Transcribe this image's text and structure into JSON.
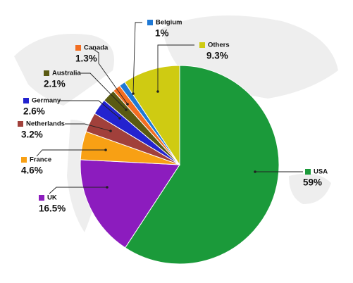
{
  "chart_data": {
    "type": "pie",
    "categories": [
      "USA",
      "UK",
      "France",
      "Netherlands",
      "Germany",
      "Australia",
      "Canada",
      "Belgium",
      "Others"
    ],
    "values": [
      59,
      16.5,
      4.6,
      3.2,
      2.6,
      2.1,
      1.3,
      1,
      9.3
    ],
    "value_labels": [
      "59%",
      "16.5%",
      "4.6%",
      "3.2%",
      "2.6%",
      "2.1%",
      "1.3%",
      "1%",
      "9.3%"
    ],
    "colors": [
      "#1b9a3a",
      "#8c1cbe",
      "#f8a014",
      "#a1403b",
      "#2323cf",
      "#5a5a12",
      "#f26e22",
      "#1f79d5",
      "#cfcb12"
    ]
  }
}
